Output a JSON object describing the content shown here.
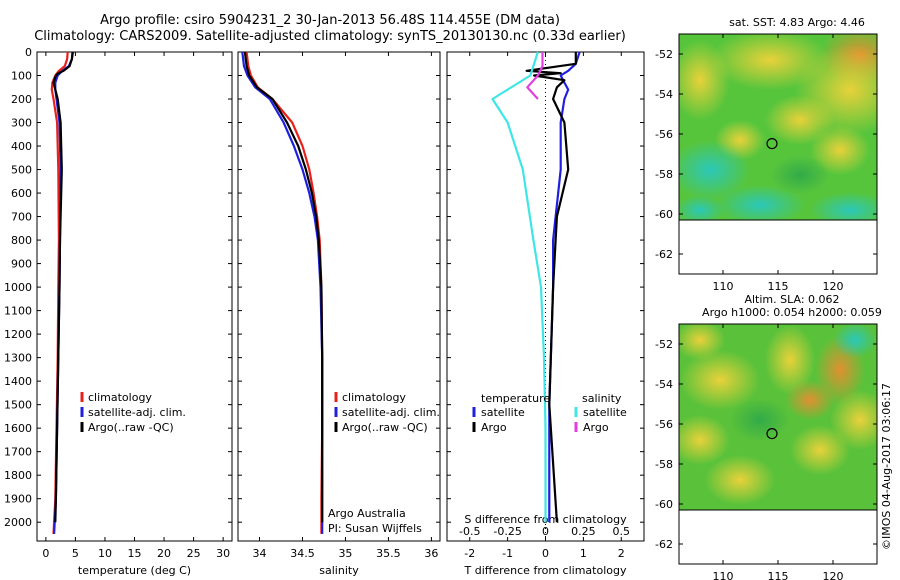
{
  "header": {
    "title_line1": "Argo profile: csiro 5904231_2 30-Jan-2013 56.48S 114.455E (DM data)",
    "title_line2": "Climatology: CARS2009. Satellite-adjusted climatology: synTS_20130130.nc (0.33d earlier)"
  },
  "colors": {
    "climatology": "#e8211c",
    "satellite_adj": "#1f1fe0",
    "argo": "#000000",
    "sat_salinity": "#3ee6e6",
    "argo_salinity": "#e23ee0"
  },
  "chart_data": [
    {
      "type": "line",
      "name": "temperature-profile",
      "xlabel": "temperature (deg C)",
      "ylabel": "",
      "xlim": [
        -1.5,
        31.5
      ],
      "ylim": [
        2080,
        0
      ],
      "xticks": [
        0,
        5,
        10,
        15,
        20,
        25,
        30
      ],
      "yticks": [
        0,
        100,
        200,
        300,
        400,
        500,
        600,
        700,
        800,
        900,
        1000,
        1100,
        1200,
        1300,
        1400,
        1500,
        1600,
        1700,
        1800,
        1900,
        2000
      ],
      "legend": [
        "climatology",
        "satellite-adj. clim.",
        "Argo(..raw -QC)"
      ],
      "legend_position": "lower-middle",
      "series": [
        {
          "name": "climatology",
          "depth": [
            0,
            30,
            60,
            80,
            100,
            130,
            160,
            200,
            300,
            500,
            800,
            1000,
            1300,
            1600,
            1900,
            2050
          ],
          "values": [
            3.7,
            3.6,
            3.2,
            2.2,
            1.6,
            1.1,
            1.0,
            1.3,
            1.9,
            2.1,
            2.2,
            2.1,
            2.0,
            1.8,
            1.6,
            1.3
          ]
        },
        {
          "name": "satellite-adj. clim.",
          "depth": [
            0,
            30,
            60,
            80,
            100,
            130,
            160,
            200,
            300,
            500,
            800,
            1000,
            1300,
            1600,
            1900,
            2050
          ],
          "values": [
            4.6,
            4.4,
            3.9,
            2.8,
            2.0,
            1.6,
            1.6,
            1.8,
            2.3,
            2.5,
            2.4,
            2.3,
            2.1,
            1.9,
            1.7,
            1.4
          ]
        },
        {
          "name": "Argo(..raw -QC)",
          "depth": [
            0,
            30,
            60,
            80,
            90,
            100,
            130,
            160,
            200,
            300,
            400,
            500,
            600,
            700,
            800,
            1000,
            1300,
            1600,
            1900,
            2000
          ],
          "values": [
            4.5,
            4.4,
            4.0,
            3.0,
            2.1,
            1.7,
            1.3,
            1.6,
            2.0,
            2.5,
            2.6,
            2.7,
            2.6,
            2.5,
            2.4,
            2.3,
            2.1,
            1.9,
            1.7,
            1.6
          ]
        }
      ]
    },
    {
      "type": "line",
      "name": "salinity-profile",
      "xlabel": "salinity",
      "xlim": [
        33.75,
        36.1
      ],
      "ylim": [
        2080,
        0
      ],
      "xticks": [
        34,
        34.5,
        35,
        35.5,
        36
      ],
      "legend": [
        "climatology",
        "satellite-adj. clim.",
        "Argo(..raw -QC)"
      ],
      "legend_position": "lower-middle",
      "annotation": [
        "Argo Australia",
        "PI: Susan Wijffels"
      ],
      "series": [
        {
          "name": "climatology",
          "depth": [
            0,
            60,
            100,
            150,
            200,
            300,
            400,
            500,
            600,
            700,
            800,
            1000,
            1300,
            1600,
            1900,
            2050
          ],
          "values": [
            33.85,
            33.87,
            33.9,
            33.98,
            34.15,
            34.38,
            34.5,
            34.58,
            34.63,
            34.67,
            34.7,
            34.72,
            34.73,
            34.73,
            34.72,
            34.72
          ]
        },
        {
          "name": "satellite-adj. clim.",
          "depth": [
            0,
            60,
            100,
            150,
            200,
            300,
            400,
            500,
            600,
            700,
            800,
            1000,
            1300,
            1600,
            1900,
            2050
          ],
          "values": [
            33.8,
            33.82,
            33.86,
            33.95,
            34.12,
            34.28,
            34.4,
            34.5,
            34.58,
            34.64,
            34.68,
            34.71,
            34.73,
            34.73,
            34.73,
            34.73
          ]
        },
        {
          "name": "Argo(..raw -QC)",
          "depth": [
            0,
            60,
            100,
            150,
            200,
            300,
            400,
            500,
            600,
            700,
            800,
            1000,
            1300,
            1600,
            1900,
            2000
          ],
          "values": [
            33.83,
            33.85,
            33.88,
            33.97,
            34.15,
            34.32,
            34.45,
            34.54,
            34.61,
            34.66,
            34.69,
            34.72,
            34.73,
            34.73,
            34.73,
            34.73
          ]
        }
      ]
    },
    {
      "type": "line",
      "name": "difference-profile",
      "xlabel": "T difference from climatology",
      "xlabel_top": "S difference from climatology",
      "xlim": [
        -2.6,
        2.6
      ],
      "ylim": [
        2080,
        0
      ],
      "xticks": [
        -2,
        -1,
        0,
        1,
        2
      ],
      "xticks_top": [
        -0.5,
        -0.25,
        0,
        0.25,
        0.5
      ],
      "legend_temperature_heading": "temperature",
      "legend_salinity_heading": "salinity",
      "legend": [
        "satellite",
        "Argo",
        "satellite",
        "Argo"
      ],
      "series": [
        {
          "name": "satellite",
          "quantity": "temperature",
          "depth": [
            0,
            50,
            80,
            100,
            130,
            160,
            200,
            300,
            500,
            800,
            1000,
            1500,
            2000
          ],
          "values": [
            0.9,
            0.8,
            0.6,
            0.4,
            0.5,
            0.6,
            0.5,
            0.4,
            0.4,
            0.2,
            0.2,
            0.1,
            0.1
          ]
        },
        {
          "name": "Argo",
          "quantity": "temperature",
          "depth": [
            0,
            50,
            80,
            90,
            100,
            120,
            150,
            200,
            300,
            500,
            700,
            1000,
            1500,
            2000
          ],
          "values": [
            0.8,
            0.8,
            -0.5,
            0.4,
            -0.3,
            0.5,
            0.3,
            0.2,
            0.5,
            0.6,
            0.3,
            0.2,
            0.1,
            0.3
          ]
        },
        {
          "name": "satellite",
          "quantity": "salinity",
          "depth": [
            0,
            100,
            200,
            300,
            500,
            800,
            1000,
            1300,
            1600,
            2000
          ],
          "values": [
            -0.05,
            -0.1,
            -0.35,
            -0.25,
            -0.15,
            -0.08,
            -0.03,
            -0.01,
            0,
            0
          ]
        },
        {
          "name": "Argo",
          "quantity": "salinity",
          "depth": [
            0,
            60,
            100,
            150,
            200
          ],
          "values": [
            -0.02,
            -0.02,
            -0.05,
            -0.12,
            -0.05
          ]
        }
      ]
    }
  ],
  "maps": [
    {
      "title": "sat. SST: 4.83 Argo: 4.46",
      "xticks": [
        "110",
        "115",
        "120"
      ],
      "yticks": [
        "-52",
        "-54",
        "-56",
        "-58",
        "-60",
        "-62"
      ]
    },
    {
      "title_line1": "Altim. SLA: 0.062",
      "title_line2": "Argo h1000: 0.054 h2000: 0.059",
      "xticks": [
        "110",
        "115",
        "120"
      ],
      "yticks": [
        "-52",
        "-54",
        "-56",
        "-58",
        "-60",
        "-62"
      ]
    }
  ],
  "footer": {
    "stamp": "©IMOS 04-Aug-2017 03:06:17"
  }
}
